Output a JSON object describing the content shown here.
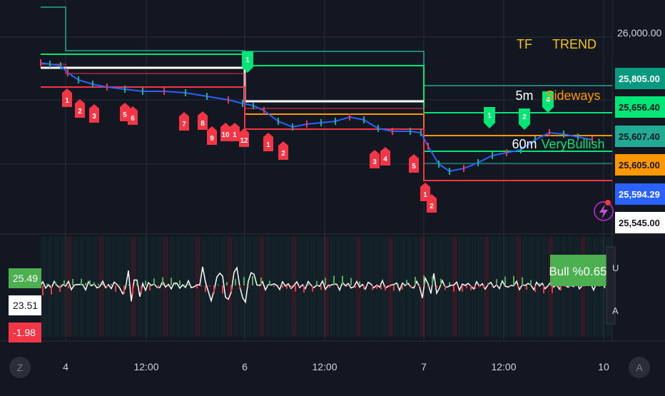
{
  "colors": {
    "bg": "#131722",
    "grid": "#2a2e39",
    "red": "#f23645",
    "green": "#22ab94",
    "lime": "#00e676",
    "orange": "#ff9800",
    "white": "#ffffff",
    "blue": "#2962ff",
    "yellow": "#f5c518"
  },
  "chart_data": [
    {
      "type": "line",
      "panel": "price",
      "y_axis_labels": [
        "26,000.00"
      ],
      "price_badges": [
        {
          "text": "25,805.00",
          "value": 25805.0,
          "color": "#089981",
          "text_color": "#ffffff"
        },
        {
          "text": "25,656.40",
          "value": 25656.4,
          "color": "#00e676",
          "text_color": "#131722"
        },
        {
          "text": "25,607.40",
          "value": 25607.4,
          "color": "#22ab94",
          "text_color": "#131722"
        },
        {
          "text": "25,605.00",
          "value": 25605.0,
          "color": "#ff9800",
          "text_color": "#131722"
        },
        {
          "text": "25,594.29",
          "value": 25594.29,
          "color": "#2962ff",
          "text_color": "#ffffff"
        },
        {
          "text": "25,545.00",
          "value": 25545.0,
          "color": "#ffffff",
          "text_color": "#131722"
        }
      ],
      "x_tick_labels": [
        "4",
        "12:00",
        "6",
        "12:00",
        "7",
        "12:00",
        "10"
      ],
      "sell_signals": [
        "1",
        "2",
        "3",
        "5",
        "6",
        "7",
        "8",
        "9",
        "10",
        "1",
        "12",
        "1",
        "2",
        "3",
        "4",
        "5",
        "1",
        "2"
      ],
      "buy_signals": [
        "1",
        "1",
        "2",
        "4"
      ],
      "trend_table": {
        "header_tf": "TF",
        "header_trend": "TREND",
        "rows": [
          {
            "tf": "5m",
            "trend": "Sideways",
            "trend_color": "#ff9800"
          },
          {
            "tf": "60m",
            "trend": "VeryBullish",
            "trend_color": "#00e676"
          }
        ]
      },
      "series": [
        {
          "name": "",
          "color": "#2962ff"
        }
      ]
    },
    {
      "type": "line",
      "panel": "oscillator",
      "badges": [
        {
          "text": "25.49",
          "value": 25.49,
          "color": "#4caf50",
          "text_color": "#ffffff"
        },
        {
          "text": "23.51",
          "value": 23.51,
          "color": "#ffffff",
          "text_color": "#131722"
        },
        {
          "text": "-1.98",
          "value": -1.98,
          "color": "#f23645",
          "text_color": "#ffffff"
        }
      ],
      "bull_label": "Bull %0.65",
      "side_label_1": "U",
      "side_label_2": "A"
    }
  ],
  "toolbar": {
    "left_btn": "Z",
    "right_btn": "A"
  }
}
